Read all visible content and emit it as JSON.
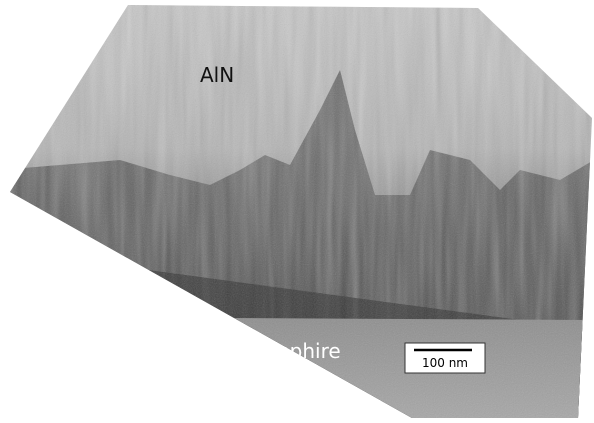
{
  "labels": {
    "layer_top": "AlN",
    "substrate": "Sapphire"
  },
  "scale_bar": {
    "label": "100 nm"
  }
}
